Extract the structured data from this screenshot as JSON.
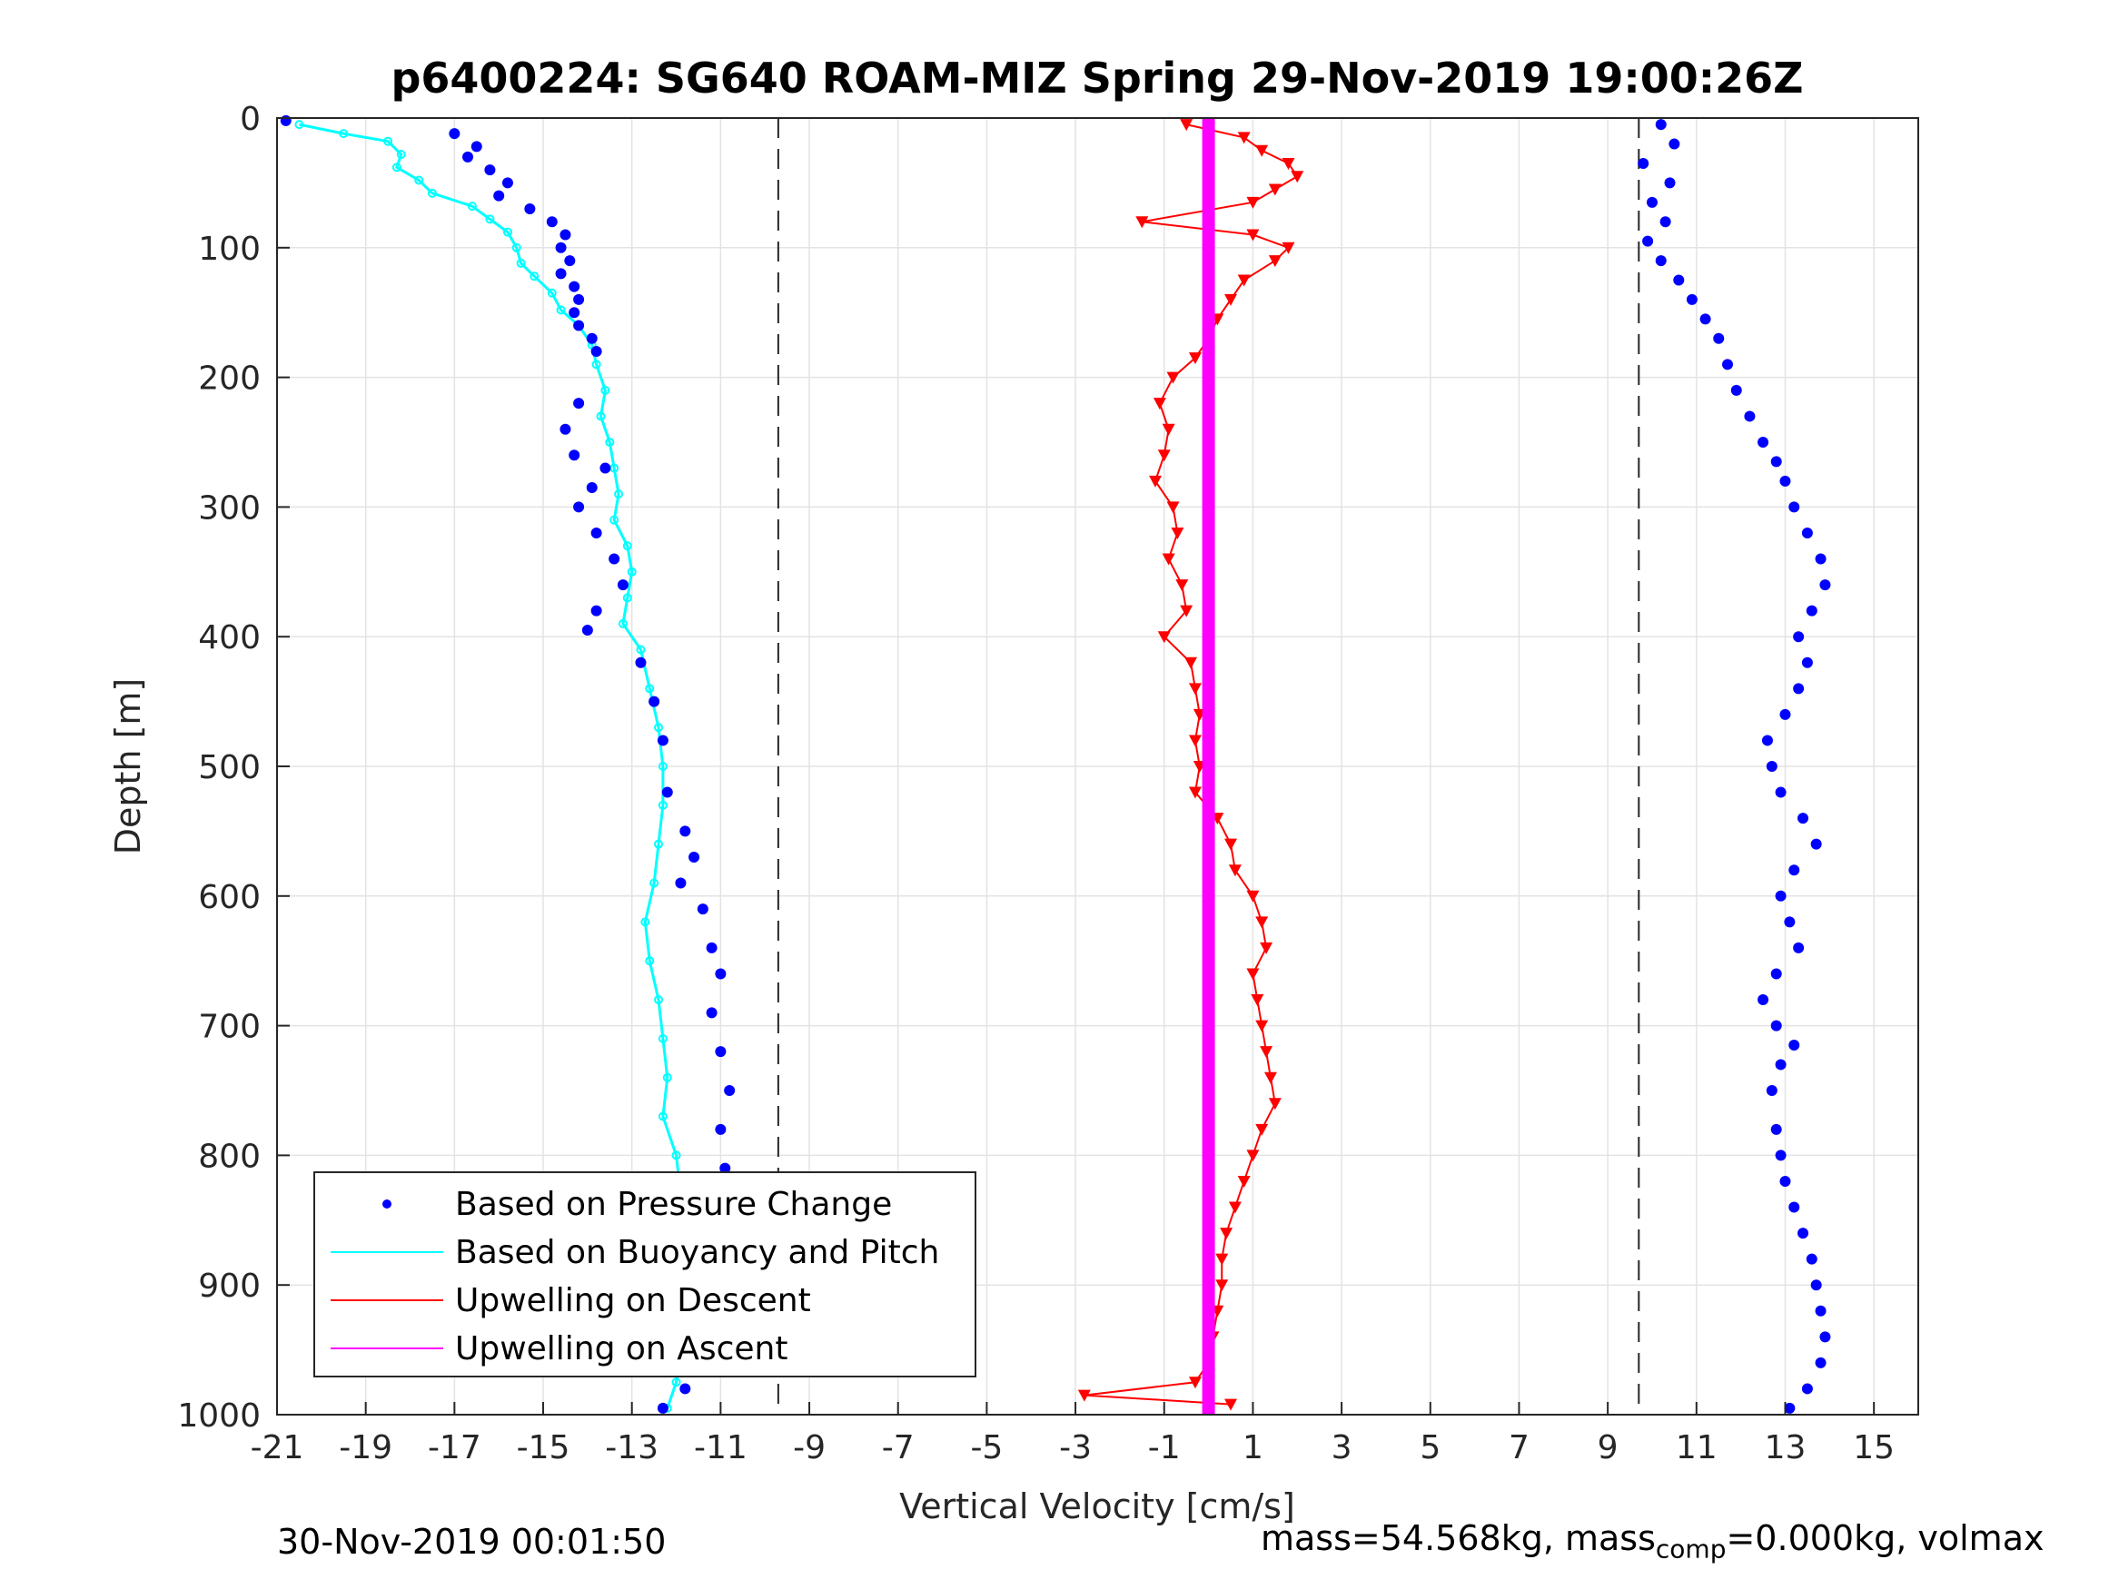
{
  "chart_data": {
    "type": "scatter",
    "title": "p6400224: SG640 ROAM-MIZ Spring 29-Nov-2019 19:00:26Z",
    "xlabel": "Vertical Velocity [cm/s]",
    "ylabel": "Depth [m]",
    "xlim": [
      -21,
      16
    ],
    "ylim": [
      1000,
      0
    ],
    "y_reversed": true,
    "grid": true,
    "x_ticks": [
      -21,
      -19,
      -17,
      -15,
      -13,
      -11,
      -9,
      -7,
      -5,
      -3,
      -1,
      1,
      3,
      5,
      7,
      9,
      11,
      13,
      15
    ],
    "y_ticks": [
      0,
      100,
      200,
      300,
      400,
      500,
      600,
      700,
      800,
      900,
      1000
    ],
    "legend": {
      "placement": "bottom-left",
      "entries": [
        {
          "name": "Based on Pressure Change",
          "color": "#0000ff",
          "style": "dots"
        },
        {
          "name": "Based on Buoyancy and Pitch",
          "color": "#00ffff",
          "style": "line"
        },
        {
          "name": "Upwelling on Descent",
          "color": "#ff0000",
          "style": "line"
        },
        {
          "name": "Upwelling on Ascent",
          "color": "#ff00ff",
          "style": "line"
        }
      ]
    },
    "reference_lines_x": [
      -9.7,
      9.7
    ],
    "series": [
      {
        "name": "Based on Pressure Change",
        "color": "#0000ff",
        "marker": "dot",
        "profiles": [
          {
            "phase": "descent",
            "points": [
              [
                -20.8,
                2
              ],
              [
                -17,
                12
              ],
              [
                -16.5,
                22
              ],
              [
                -16.7,
                30
              ],
              [
                -16.2,
                40
              ],
              [
                -15.8,
                50
              ],
              [
                -16,
                60
              ],
              [
                -15.3,
                70
              ],
              [
                -14.8,
                80
              ],
              [
                -14.5,
                90
              ],
              [
                -14.6,
                100
              ],
              [
                -14.4,
                110
              ],
              [
                -14.6,
                120
              ],
              [
                -14.3,
                130
              ],
              [
                -14.2,
                140
              ],
              [
                -14.3,
                150
              ],
              [
                -14.2,
                160
              ],
              [
                -13.9,
                170
              ],
              [
                -13.8,
                180
              ],
              [
                -14.2,
                220
              ],
              [
                -14.5,
                240
              ],
              [
                -14.3,
                260
              ],
              [
                -13.6,
                270
              ],
              [
                -13.9,
                285
              ],
              [
                -14.2,
                300
              ],
              [
                -13.8,
                320
              ],
              [
                -13.4,
                340
              ],
              [
                -13.2,
                360
              ],
              [
                -13.8,
                380
              ],
              [
                -14,
                395
              ],
              [
                -12.8,
                420
              ],
              [
                -12.5,
                450
              ],
              [
                -12.3,
                480
              ],
              [
                -12.2,
                520
              ],
              [
                -11.8,
                550
              ],
              [
                -11.6,
                570
              ],
              [
                -11.9,
                590
              ],
              [
                -11.4,
                610
              ],
              [
                -11.2,
                640
              ],
              [
                -11.0,
                660
              ],
              [
                -11.2,
                690
              ],
              [
                -11.0,
                720
              ],
              [
                -10.8,
                750
              ],
              [
                -11.0,
                780
              ],
              [
                -10.9,
                810
              ],
              [
                -11.2,
                840
              ],
              [
                -11.6,
                870
              ],
              [
                -11.8,
                900
              ],
              [
                -11.9,
                930
              ],
              [
                -12.0,
                960
              ],
              [
                -11.8,
                980
              ],
              [
                -12.3,
                995
              ]
            ]
          },
          {
            "phase": "ascent",
            "points": [
              [
                10.2,
                5
              ],
              [
                10.5,
                20
              ],
              [
                9.8,
                35
              ],
              [
                10.4,
                50
              ],
              [
                10.0,
                65
              ],
              [
                10.3,
                80
              ],
              [
                9.9,
                95
              ],
              [
                10.2,
                110
              ],
              [
                10.6,
                125
              ],
              [
                10.9,
                140
              ],
              [
                11.2,
                155
              ],
              [
                11.5,
                170
              ],
              [
                11.7,
                190
              ],
              [
                11.9,
                210
              ],
              [
                12.2,
                230
              ],
              [
                12.5,
                250
              ],
              [
                12.8,
                265
              ],
              [
                13.0,
                280
              ],
              [
                13.2,
                300
              ],
              [
                13.5,
                320
              ],
              [
                13.8,
                340
              ],
              [
                13.9,
                360
              ],
              [
                13.6,
                380
              ],
              [
                13.3,
                400
              ],
              [
                13.5,
                420
              ],
              [
                13.3,
                440
              ],
              [
                13.0,
                460
              ],
              [
                12.6,
                480
              ],
              [
                12.7,
                500
              ],
              [
                12.9,
                520
              ],
              [
                13.4,
                540
              ],
              [
                13.7,
                560
              ],
              [
                13.2,
                580
              ],
              [
                12.9,
                600
              ],
              [
                13.1,
                620
              ],
              [
                13.3,
                640
              ],
              [
                12.8,
                660
              ],
              [
                12.5,
                680
              ],
              [
                12.8,
                700
              ],
              [
                13.2,
                715
              ],
              [
                12.9,
                730
              ],
              [
                12.7,
                750
              ],
              [
                12.8,
                780
              ],
              [
                12.9,
                800
              ],
              [
                13.0,
                820
              ],
              [
                13.2,
                840
              ],
              [
                13.4,
                860
              ],
              [
                13.6,
                880
              ],
              [
                13.7,
                900
              ],
              [
                13.8,
                920
              ],
              [
                13.9,
                940
              ],
              [
                13.8,
                960
              ],
              [
                13.5,
                980
              ],
              [
                13.1,
                995
              ]
            ]
          }
        ]
      },
      {
        "name": "Based on Buoyancy and Pitch",
        "color": "#00ffff",
        "marker": "line",
        "points": [
          [
            -20.5,
            5
          ],
          [
            -19.5,
            12
          ],
          [
            -18.5,
            18
          ],
          [
            -18.2,
            28
          ],
          [
            -18.3,
            38
          ],
          [
            -17.8,
            48
          ],
          [
            -17.5,
            58
          ],
          [
            -16.6,
            68
          ],
          [
            -16.2,
            78
          ],
          [
            -15.8,
            88
          ],
          [
            -15.6,
            100
          ],
          [
            -15.5,
            112
          ],
          [
            -15.2,
            122
          ],
          [
            -14.8,
            135
          ],
          [
            -14.6,
            148
          ],
          [
            -14.2,
            160
          ],
          [
            -13.9,
            175
          ],
          [
            -13.8,
            190
          ],
          [
            -13.6,
            210
          ],
          [
            -13.7,
            230
          ],
          [
            -13.5,
            250
          ],
          [
            -13.4,
            270
          ],
          [
            -13.3,
            290
          ],
          [
            -13.4,
            310
          ],
          [
            -13.1,
            330
          ],
          [
            -13.0,
            350
          ],
          [
            -13.1,
            370
          ],
          [
            -13.2,
            390
          ],
          [
            -12.8,
            410
          ],
          [
            -12.6,
            440
          ],
          [
            -12.4,
            470
          ],
          [
            -12.3,
            500
          ],
          [
            -12.3,
            530
          ],
          [
            -12.4,
            560
          ],
          [
            -12.5,
            590
          ],
          [
            -12.7,
            620
          ],
          [
            -12.6,
            650
          ],
          [
            -12.4,
            680
          ],
          [
            -12.3,
            710
          ],
          [
            -12.2,
            740
          ],
          [
            -12.3,
            770
          ],
          [
            -12.0,
            800
          ],
          [
            -11.9,
            830
          ],
          [
            -12.0,
            860
          ],
          [
            -11.8,
            890
          ],
          [
            -11.8,
            920
          ],
          [
            -11.9,
            950
          ],
          [
            -12.0,
            975
          ],
          [
            -12.2,
            995
          ]
        ]
      },
      {
        "name": "Upwelling on Descent",
        "color": "#ff0000",
        "marker": "triangle-down",
        "points": [
          [
            -0.5,
            5
          ],
          [
            0.8,
            15
          ],
          [
            1.2,
            25
          ],
          [
            1.8,
            35
          ],
          [
            2.0,
            45
          ],
          [
            1.5,
            55
          ],
          [
            1.0,
            65
          ],
          [
            -1.5,
            80
          ],
          [
            1.0,
            90
          ],
          [
            1.8,
            100
          ],
          [
            1.5,
            110
          ],
          [
            0.8,
            125
          ],
          [
            0.5,
            140
          ],
          [
            0.2,
            155
          ],
          [
            0.0,
            170
          ],
          [
            -0.3,
            185
          ],
          [
            -0.8,
            200
          ],
          [
            -1.1,
            220
          ],
          [
            -0.9,
            240
          ],
          [
            -1.0,
            260
          ],
          [
            -1.2,
            280
          ],
          [
            -0.8,
            300
          ],
          [
            -0.7,
            320
          ],
          [
            -0.9,
            340
          ],
          [
            -0.6,
            360
          ],
          [
            -0.5,
            380
          ],
          [
            -1.0,
            400
          ],
          [
            -0.4,
            420
          ],
          [
            -0.3,
            440
          ],
          [
            -0.2,
            460
          ],
          [
            -0.3,
            480
          ],
          [
            -0.2,
            500
          ],
          [
            -0.3,
            520
          ],
          [
            0.2,
            540
          ],
          [
            0.5,
            560
          ],
          [
            0.6,
            580
          ],
          [
            1.0,
            600
          ],
          [
            1.2,
            620
          ],
          [
            1.3,
            640
          ],
          [
            1.0,
            660
          ],
          [
            1.1,
            680
          ],
          [
            1.2,
            700
          ],
          [
            1.3,
            720
          ],
          [
            1.4,
            740
          ],
          [
            1.5,
            760
          ],
          [
            1.2,
            780
          ],
          [
            1.0,
            800
          ],
          [
            0.8,
            820
          ],
          [
            0.6,
            840
          ],
          [
            0.4,
            860
          ],
          [
            0.3,
            880
          ],
          [
            0.3,
            900
          ],
          [
            0.2,
            920
          ],
          [
            0.1,
            940
          ],
          [
            0.0,
            960
          ],
          [
            -0.3,
            975
          ],
          [
            -2.8,
            985
          ],
          [
            0.5,
            992
          ]
        ]
      },
      {
        "name": "Upwelling on Ascent",
        "color": "#ff00ff",
        "marker": "line",
        "points": [
          [
            0.0,
            0
          ],
          [
            0.0,
            1000
          ]
        ]
      }
    ]
  },
  "footer": {
    "timestamp": "30-Nov-2019 00:01:50",
    "mass_prefix": "mass=54.568kg, mass",
    "mass_sub": "comp",
    "mass_suffix": "=0.000kg, volmax"
  }
}
